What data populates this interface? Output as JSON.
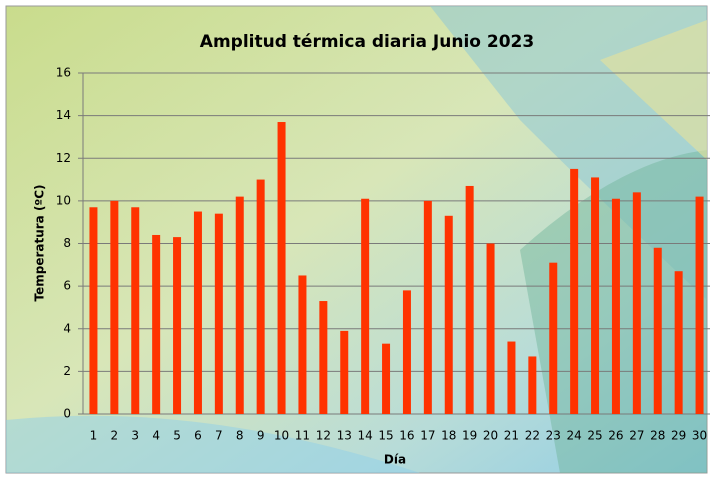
{
  "chart_data": {
    "type": "bar",
    "title": "Amplitud térmica diaria Junio 2023",
    "x_label": "Día",
    "y_label": "Temperatura (ºC)",
    "categories": [
      "1",
      "2",
      "3",
      "4",
      "5",
      "6",
      "7",
      "8",
      "9",
      "10",
      "11",
      "12",
      "13",
      "14",
      "15",
      "16",
      "17",
      "18",
      "19",
      "20",
      "21",
      "22",
      "23",
      "24",
      "25",
      "26",
      "27",
      "28",
      "29",
      "30"
    ],
    "values": [
      9.7,
      10.0,
      9.7,
      8.4,
      8.3,
      9.5,
      9.4,
      10.2,
      11.0,
      13.7,
      6.5,
      5.3,
      3.9,
      10.1,
      3.3,
      5.8,
      10.0,
      9.3,
      10.7,
      8.0,
      3.4,
      2.7,
      7.1,
      11.5,
      11.1,
      10.1,
      10.4,
      7.8,
      6.7,
      10.2
    ],
    "color": "#ff3300",
    "ylim": [
      0,
      16
    ],
    "yticks": [
      0,
      2,
      4,
      6,
      8,
      10,
      12,
      14,
      16
    ],
    "grid": true
  }
}
